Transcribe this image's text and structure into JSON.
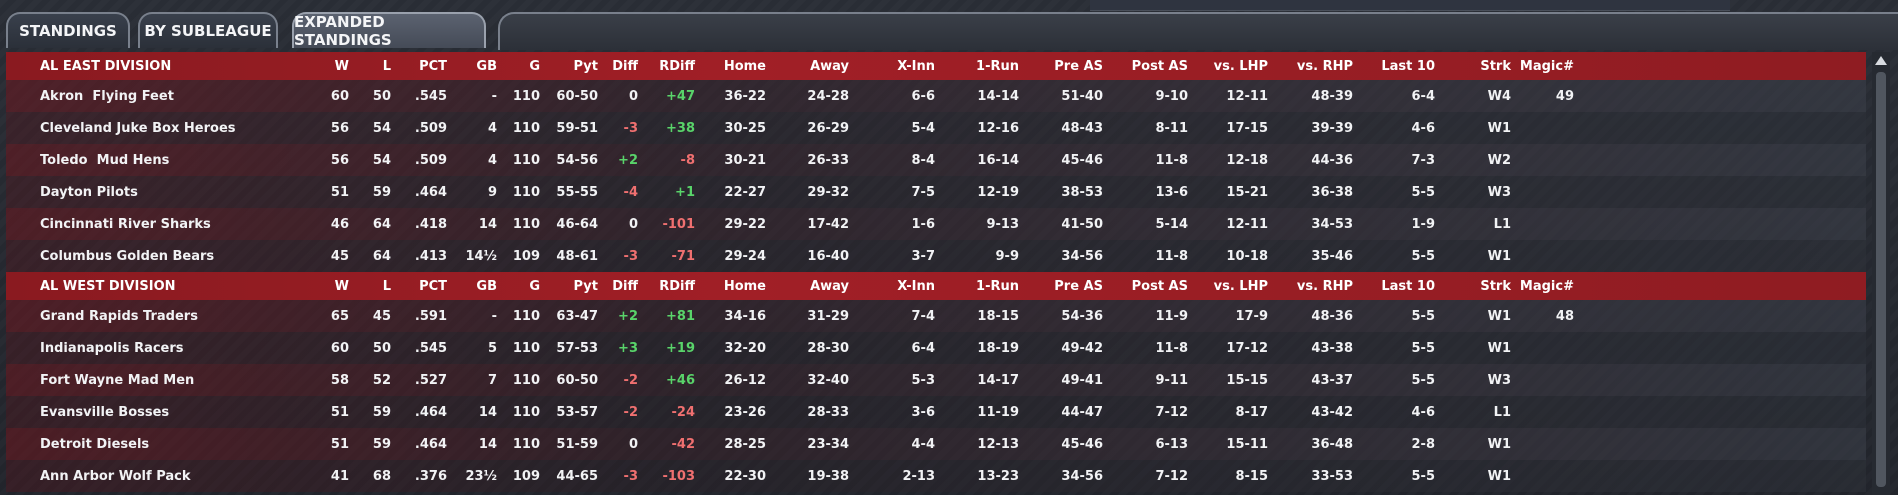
{
  "tabs": [
    {
      "label": "STANDINGS",
      "active": false
    },
    {
      "label": "BY SUBLEAGUE",
      "active": false
    },
    {
      "label": "EXPANDED STANDINGS",
      "active": true
    }
  ],
  "colors": {
    "header_red": "#a11f26",
    "positive": "#59d46a",
    "negative": "#f07070"
  },
  "columns": [
    "W",
    "L",
    "PCT",
    "GB",
    "G",
    "Pyt",
    "Diff",
    "RDiff",
    "Home",
    "Away",
    "X-Inn",
    "1-Run",
    "Pre AS",
    "Post AS",
    "vs. LHP",
    "vs. RHP",
    "Last 10",
    "Strk",
    "Magic#"
  ],
  "divisions": [
    {
      "name": "AL EAST DIVISION",
      "teams": [
        {
          "team": "Akron  Flying Feet",
          "W": "60",
          "L": "50",
          "PCT": ".545",
          "GB": "-",
          "G": "110",
          "Pyt": "60-50",
          "Diff": "0",
          "RDiff": "+47",
          "Home": "36-22",
          "Away": "24-28",
          "XInn": "6-6",
          "OneRun": "14-14",
          "PreAS": "51-40",
          "PostAS": "9-10",
          "vsLHP": "12-11",
          "vsRHP": "48-39",
          "Last10": "6-4",
          "Strk": "W4",
          "Magic": "49"
        },
        {
          "team": "Cleveland Juke Box Heroes",
          "W": "56",
          "L": "54",
          "PCT": ".509",
          "GB": "4",
          "G": "110",
          "Pyt": "59-51",
          "Diff": "-3",
          "RDiff": "+38",
          "Home": "30-25",
          "Away": "26-29",
          "XInn": "5-4",
          "OneRun": "12-16",
          "PreAS": "48-43",
          "PostAS": "8-11",
          "vsLHP": "17-15",
          "vsRHP": "39-39",
          "Last10": "4-6",
          "Strk": "W1",
          "Magic": ""
        },
        {
          "team": "Toledo  Mud Hens",
          "W": "56",
          "L": "54",
          "PCT": ".509",
          "GB": "4",
          "G": "110",
          "Pyt": "54-56",
          "Diff": "+2",
          "RDiff": "-8",
          "Home": "30-21",
          "Away": "26-33",
          "XInn": "8-4",
          "OneRun": "16-14",
          "PreAS": "45-46",
          "PostAS": "11-8",
          "vsLHP": "12-18",
          "vsRHP": "44-36",
          "Last10": "7-3",
          "Strk": "W2",
          "Magic": ""
        },
        {
          "team": "Dayton Pilots",
          "W": "51",
          "L": "59",
          "PCT": ".464",
          "GB": "9",
          "G": "110",
          "Pyt": "55-55",
          "Diff": "-4",
          "RDiff": "+1",
          "Home": "22-27",
          "Away": "29-32",
          "XInn": "7-5",
          "OneRun": "12-19",
          "PreAS": "38-53",
          "PostAS": "13-6",
          "vsLHP": "15-21",
          "vsRHP": "36-38",
          "Last10": "5-5",
          "Strk": "W3",
          "Magic": ""
        },
        {
          "team": "Cincinnati River Sharks",
          "W": "46",
          "L": "64",
          "PCT": ".418",
          "GB": "14",
          "G": "110",
          "Pyt": "46-64",
          "Diff": "0",
          "RDiff": "-101",
          "Home": "29-22",
          "Away": "17-42",
          "XInn": "1-6",
          "OneRun": "9-13",
          "PreAS": "41-50",
          "PostAS": "5-14",
          "vsLHP": "12-11",
          "vsRHP": "34-53",
          "Last10": "1-9",
          "Strk": "L1",
          "Magic": ""
        },
        {
          "team": "Columbus Golden Bears",
          "W": "45",
          "L": "64",
          "PCT": ".413",
          "GB": "14½",
          "G": "109",
          "Pyt": "48-61",
          "Diff": "-3",
          "RDiff": "-71",
          "Home": "29-24",
          "Away": "16-40",
          "XInn": "3-7",
          "OneRun": "9-9",
          "PreAS": "34-56",
          "PostAS": "11-8",
          "vsLHP": "10-18",
          "vsRHP": "35-46",
          "Last10": "5-5",
          "Strk": "W1",
          "Magic": ""
        }
      ]
    },
    {
      "name": "AL WEST DIVISION",
      "teams": [
        {
          "team": "Grand Rapids Traders",
          "W": "65",
          "L": "45",
          "PCT": ".591",
          "GB": "-",
          "G": "110",
          "Pyt": "63-47",
          "Diff": "+2",
          "RDiff": "+81",
          "Home": "34-16",
          "Away": "31-29",
          "XInn": "7-4",
          "OneRun": "18-15",
          "PreAS": "54-36",
          "PostAS": "11-9",
          "vsLHP": "17-9",
          "vsRHP": "48-36",
          "Last10": "5-5",
          "Strk": "W1",
          "Magic": "48"
        },
        {
          "team": "Indianapolis Racers",
          "W": "60",
          "L": "50",
          "PCT": ".545",
          "GB": "5",
          "G": "110",
          "Pyt": "57-53",
          "Diff": "+3",
          "RDiff": "+19",
          "Home": "32-20",
          "Away": "28-30",
          "XInn": "6-4",
          "OneRun": "18-19",
          "PreAS": "49-42",
          "PostAS": "11-8",
          "vsLHP": "17-12",
          "vsRHP": "43-38",
          "Last10": "5-5",
          "Strk": "W1",
          "Magic": ""
        },
        {
          "team": "Fort Wayne Mad Men",
          "W": "58",
          "L": "52",
          "PCT": ".527",
          "GB": "7",
          "G": "110",
          "Pyt": "60-50",
          "Diff": "-2",
          "RDiff": "+46",
          "Home": "26-12",
          "Away": "32-40",
          "XInn": "5-3",
          "OneRun": "14-17",
          "PreAS": "49-41",
          "PostAS": "9-11",
          "vsLHP": "15-15",
          "vsRHP": "43-37",
          "Last10": "5-5",
          "Strk": "W3",
          "Magic": ""
        },
        {
          "team": "Evansville Bosses",
          "W": "51",
          "L": "59",
          "PCT": ".464",
          "GB": "14",
          "G": "110",
          "Pyt": "53-57",
          "Diff": "-2",
          "RDiff": "-24",
          "Home": "23-26",
          "Away": "28-33",
          "XInn": "3-6",
          "OneRun": "11-19",
          "PreAS": "44-47",
          "PostAS": "7-12",
          "vsLHP": "8-17",
          "vsRHP": "43-42",
          "Last10": "4-6",
          "Strk": "L1",
          "Magic": ""
        },
        {
          "team": "Detroit Diesels",
          "W": "51",
          "L": "59",
          "PCT": ".464",
          "GB": "14",
          "G": "110",
          "Pyt": "51-59",
          "Diff": "0",
          "RDiff": "-42",
          "Home": "28-25",
          "Away": "23-34",
          "XInn": "4-4",
          "OneRun": "12-13",
          "PreAS": "45-46",
          "PostAS": "6-13",
          "vsLHP": "15-11",
          "vsRHP": "36-48",
          "Last10": "2-8",
          "Strk": "W1",
          "Magic": ""
        },
        {
          "team": "Ann Arbor Wolf Pack",
          "W": "41",
          "L": "68",
          "PCT": ".376",
          "GB": "23½",
          "G": "109",
          "Pyt": "44-65",
          "Diff": "-3",
          "RDiff": "-103",
          "Home": "22-30",
          "Away": "19-38",
          "XInn": "2-13",
          "OneRun": "13-23",
          "PreAS": "34-56",
          "PostAS": "7-12",
          "vsLHP": "8-15",
          "vsRHP": "33-53",
          "Last10": "5-5",
          "Strk": "W1",
          "Magic": ""
        }
      ]
    }
  ]
}
